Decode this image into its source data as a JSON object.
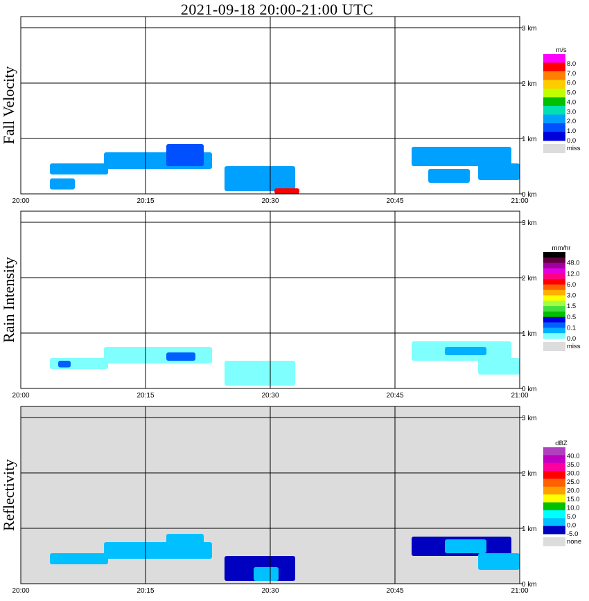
{
  "title": "2021-09-18   20:00-21:00 UTC",
  "colors": {
    "missing_fill": "#dcdcdc",
    "grid": "#000000",
    "panel_bg": "#ffffff"
  },
  "chart_data": [
    {
      "type": "heatmap",
      "ylabel": "Fall Velocity",
      "x_tick_labels": [
        "20:00",
        "20:15",
        "20:30",
        "20:45",
        "21:00"
      ],
      "y_tick_labels": [
        "0 km",
        "1 km",
        "2 km",
        "3 km"
      ],
      "xlim": [
        "20:00",
        "21:00"
      ],
      "ylim_km": [
        0,
        3.5
      ],
      "background": "white",
      "colorbar": {
        "unit": "m/s",
        "labels": [
          "8.0",
          "7.0",
          "6.0",
          "5.0",
          "4.0",
          "3.0",
          "2.0",
          "1.0",
          "0.0"
        ],
        "colors": [
          "#ff00ff",
          "#ff0000",
          "#ff7f00",
          "#ffcc00",
          "#bfff00",
          "#00c000",
          "#00e0b0",
          "#00a0ff",
          "#0050ff",
          "#0000dd"
        ],
        "missing_label": "miss"
      },
      "echoes": [
        {
          "x0": 3.5,
          "x1": 10.5,
          "y0": 0.35,
          "y1": 0.55,
          "level": 7
        },
        {
          "x0": 3.5,
          "x1": 6.5,
          "y0": 0.08,
          "y1": 0.28,
          "level": 7
        },
        {
          "x0": 10,
          "x1": 23,
          "y0": 0.45,
          "y1": 0.75,
          "level": 7
        },
        {
          "x0": 17.5,
          "x1": 22,
          "y0": 0.5,
          "y1": 0.9,
          "level": 8
        },
        {
          "x0": 24.5,
          "x1": 33,
          "y0": 0.05,
          "y1": 0.5,
          "level": 7
        },
        {
          "x0": 30.5,
          "x1": 33.5,
          "y0": 0.0,
          "y1": 0.1,
          "level": 1
        },
        {
          "x0": 47,
          "x1": 59,
          "y0": 0.5,
          "y1": 0.85,
          "level": 7
        },
        {
          "x0": 49,
          "x1": 54,
          "y0": 0.2,
          "y1": 0.45,
          "level": 7
        },
        {
          "x0": 55,
          "x1": 60,
          "y0": 0.25,
          "y1": 0.55,
          "level": 7
        }
      ]
    },
    {
      "type": "heatmap",
      "ylabel": "Rain Intensity",
      "x_tick_labels": [
        "20:00",
        "20:15",
        "20:30",
        "20:45",
        "21:00"
      ],
      "y_tick_labels": [
        "0 km",
        "1 km",
        "2 km",
        "3 km"
      ],
      "xlim": [
        "20:00",
        "21:00"
      ],
      "ylim_km": [
        0,
        3.5
      ],
      "background": "white",
      "colorbar": {
        "unit": "mm/hr",
        "labels": [
          "48.0",
          "12.0",
          "6.0",
          "3.0",
          "1.5",
          "0.5",
          "0.1",
          "0.0"
        ],
        "colors": [
          "#000000",
          "#600040",
          "#a000a0",
          "#e000e0",
          "#ff0080",
          "#ff0000",
          "#ff6000",
          "#ffb000",
          "#ffff00",
          "#a0ff40",
          "#40e040",
          "#00c000",
          "#0000e0",
          "#0060ff",
          "#00b0ff",
          "#80ffff"
        ],
        "missing_label": "miss"
      },
      "echoes": [
        {
          "x0": 3.5,
          "x1": 10.5,
          "y0": 0.35,
          "y1": 0.55,
          "level": 15
        },
        {
          "x0": 4.5,
          "x1": 6,
          "y0": 0.38,
          "y1": 0.5,
          "level": 13
        },
        {
          "x0": 10,
          "x1": 23,
          "y0": 0.45,
          "y1": 0.75,
          "level": 15
        },
        {
          "x0": 17.5,
          "x1": 21,
          "y0": 0.5,
          "y1": 0.65,
          "level": 13
        },
        {
          "x0": 24.5,
          "x1": 33,
          "y0": 0.05,
          "y1": 0.5,
          "level": 15
        },
        {
          "x0": 47,
          "x1": 59,
          "y0": 0.5,
          "y1": 0.85,
          "level": 15
        },
        {
          "x0": 51,
          "x1": 56,
          "y0": 0.6,
          "y1": 0.75,
          "level": 14
        },
        {
          "x0": 55,
          "x1": 60,
          "y0": 0.25,
          "y1": 0.55,
          "level": 15
        }
      ]
    },
    {
      "type": "heatmap",
      "ylabel": "Reflectivity",
      "x_tick_labels": [
        "20:00",
        "20:15",
        "20:30",
        "20:45",
        "21:00"
      ],
      "y_tick_labels": [
        "0 km",
        "1 km",
        "2 km",
        "3 km"
      ],
      "xlim": [
        "20:00",
        "21:00"
      ],
      "ylim_km": [
        0,
        3.5
      ],
      "background": "missing",
      "colorbar": {
        "unit": "dBZ",
        "labels": [
          "40.0",
          "35.0",
          "30.0",
          "25.0",
          "20.0",
          "15.0",
          "10.0",
          "5.0",
          "0.0",
          "-5.0"
        ],
        "colors": [
          "#b040c0",
          "#c000c0",
          "#ff00a0",
          "#ff0000",
          "#ff6000",
          "#ffa000",
          "#ffff00",
          "#00c000",
          "#00ffff",
          "#00c0ff",
          "#0000c0"
        ],
        "missing_label": "none"
      },
      "echoes": [
        {
          "x0": 3.5,
          "x1": 10.5,
          "y0": 0.35,
          "y1": 0.55,
          "level": 9
        },
        {
          "x0": 10,
          "x1": 23,
          "y0": 0.45,
          "y1": 0.75,
          "level": 9
        },
        {
          "x0": 17.5,
          "x1": 22,
          "y0": 0.5,
          "y1": 0.9,
          "level": 9
        },
        {
          "x0": 24.5,
          "x1": 33,
          "y0": 0.05,
          "y1": 0.5,
          "level": 10
        },
        {
          "x0": 28,
          "x1": 31,
          "y0": 0.05,
          "y1": 0.3,
          "level": 9
        },
        {
          "x0": 47,
          "x1": 59,
          "y0": 0.5,
          "y1": 0.85,
          "level": 10
        },
        {
          "x0": 51,
          "x1": 56,
          "y0": 0.55,
          "y1": 0.8,
          "level": 9
        },
        {
          "x0": 55,
          "x1": 60,
          "y0": 0.25,
          "y1": 0.55,
          "level": 9
        }
      ]
    }
  ]
}
